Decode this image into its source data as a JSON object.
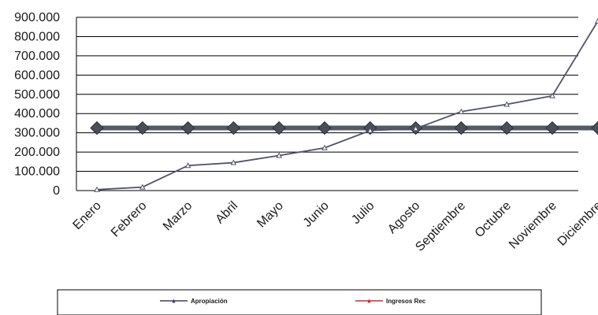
{
  "chart_data": {
    "type": "line",
    "categories": [
      "Enero",
      "Febrero",
      "Marzo",
      "Abril",
      "Mayo",
      "Junio",
      "Julio",
      "Agosto",
      "Septiembre",
      "Octubre",
      "Noviembre",
      "Diciembre"
    ],
    "series": [
      {
        "name": "Apropiación",
        "color": "#3a3f6e",
        "marker": "triangle",
        "values": [
          325000,
          325000,
          325000,
          325000,
          325000,
          325000,
          325000,
          325000,
          325000,
          325000,
          325000,
          325000
        ]
      },
      {
        "name": "Ingresos Rec",
        "color": "#cc2b2b",
        "marker": "triangle",
        "values": [
          5000,
          18000,
          130000,
          145000,
          182000,
          222000,
          312000,
          322000,
          410000,
          448000,
          492000,
          880000
        ]
      }
    ],
    "ylim": [
      0,
      900000
    ],
    "yticks": [
      0,
      100000,
      200000,
      300000,
      400000,
      500000,
      600000,
      700000,
      800000,
      900000
    ],
    "ytick_labels": [
      "0",
      "100.000",
      "200.000",
      "300.000",
      "400.000",
      "500.000",
      "600.000",
      "700.000",
      "800.000",
      "900.000"
    ],
    "grid": true,
    "legend_position": "bottom",
    "title": "",
    "xlabel": "",
    "ylabel": ""
  }
}
